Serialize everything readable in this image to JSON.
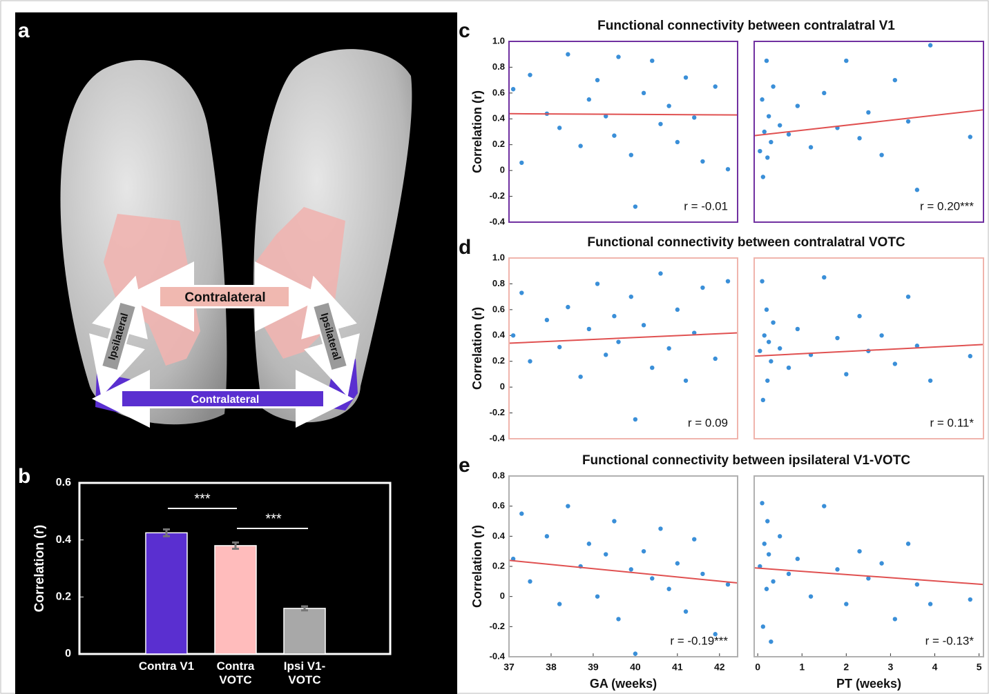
{
  "panel_a": {
    "label": "a",
    "arrows": [
      "Contralateral",
      "Ipsilateral",
      "Ipsilateral",
      "Contralateral"
    ]
  },
  "chart_data": [
    {
      "type": "bar",
      "panel": "b",
      "ylabel": "Correlation (r)",
      "categories": [
        "Contra V1",
        "Contra VOTC",
        "Ipsi V1-VOTC"
      ],
      "values": [
        0.425,
        0.38,
        0.16
      ],
      "errors": [
        0.012,
        0.011,
        0.007
      ],
      "colors": [
        "#5a2fd0",
        "#ffbcbc",
        "#a8a8a8"
      ],
      "ylim": [
        0,
        0.6
      ],
      "yticks": [
        0,
        0.2,
        0.4,
        0.6
      ],
      "annotations": [
        "***",
        "***"
      ]
    },
    {
      "type": "scatter",
      "panel": "c",
      "title": "Functional connectivity between contralatral V1",
      "ylabel": "Correlation (r)",
      "xlim": [
        37,
        42.43
      ],
      "ylim": [
        -0.4,
        1.0
      ],
      "yticks": [
        -0.4,
        -0.2,
        0,
        0.2,
        0.4,
        0.6,
        0.8,
        {
          "value": 1.0,
          "label": "1.0"
        }
      ],
      "x": [
        37.1,
        37.3,
        37.5,
        37.9,
        38.2,
        38.4,
        38.7,
        38.9,
        39.1,
        39.3,
        39.5,
        39.6,
        39.9,
        40.0,
        40.2,
        40.4,
        40.6,
        40.8,
        41.0,
        41.2,
        41.4,
        41.6,
        41.9,
        42.2
      ],
      "y": [
        0.63,
        0.06,
        0.74,
        0.44,
        0.33,
        0.9,
        0.19,
        0.55,
        0.7,
        0.42,
        0.27,
        0.88,
        0.12,
        -0.28,
        0.6,
        0.85,
        0.36,
        0.5,
        0.22,
        0.72,
        0.41,
        0.07,
        0.65,
        0.01
      ],
      "fit": {
        "x": [
          37,
          42.43
        ],
        "y": [
          0.44,
          0.43
        ]
      },
      "annotation": "r = -0.01",
      "color": "#3a8fd8",
      "fit_color": "#e05050",
      "frame_color": "#7030a0"
    },
    {
      "type": "scatter",
      "xlim": [
        -0.08,
        5.1
      ],
      "ylim": [
        -0.4,
        1.0
      ],
      "x": [
        0.05,
        0.1,
        0.12,
        0.15,
        0.2,
        0.22,
        0.25,
        0.3,
        0.35,
        0.5,
        0.7,
        0.9,
        1.2,
        1.5,
        1.8,
        2.0,
        2.3,
        2.5,
        2.8,
        3.1,
        3.4,
        3.6,
        3.9,
        4.8
      ],
      "y": [
        0.15,
        0.55,
        -0.05,
        0.3,
        0.85,
        0.1,
        0.42,
        0.22,
        0.65,
        0.35,
        0.28,
        0.5,
        0.18,
        0.6,
        0.33,
        0.85,
        0.25,
        0.45,
        0.12,
        0.7,
        0.38,
        -0.15,
        0.97,
        0.26
      ],
      "fit": {
        "x": [
          -0.08,
          5.1
        ],
        "y": [
          0.27,
          0.47
        ]
      },
      "annotation": "r = 0.20***",
      "color": "#3a8fd8",
      "fit_color": "#e05050",
      "frame_color": "#7030a0"
    },
    {
      "type": "scatter",
      "panel": "d",
      "title": "Functional connectivity between contralatral VOTC",
      "ylabel": "Correlation (r)",
      "xlim": [
        37,
        42.43
      ],
      "ylim": [
        -0.4,
        1.0
      ],
      "yticks": [
        -0.4,
        -0.2,
        0,
        0.2,
        0.4,
        0.6,
        0.8,
        {
          "value": 1.0,
          "label": "1.0"
        }
      ],
      "x": [
        37.1,
        37.3,
        37.5,
        37.9,
        38.2,
        38.4,
        38.7,
        38.9,
        39.1,
        39.3,
        39.5,
        39.6,
        39.9,
        40.0,
        40.2,
        40.4,
        40.6,
        40.8,
        41.0,
        41.2,
        41.4,
        41.6,
        41.9,
        42.2
      ],
      "y": [
        0.4,
        0.73,
        0.2,
        0.52,
        0.31,
        0.62,
        0.08,
        0.45,
        0.8,
        0.25,
        0.55,
        0.35,
        0.7,
        -0.25,
        0.48,
        0.15,
        0.88,
        0.3,
        0.6,
        0.05,
        0.42,
        0.77,
        0.22,
        0.82
      ],
      "fit": {
        "x": [
          37,
          42.43
        ],
        "y": [
          0.34,
          0.42
        ]
      },
      "annotation": "r = 0.09",
      "color": "#3a8fd8",
      "fit_color": "#e05050",
      "frame_color": "#f0b4ac"
    },
    {
      "type": "scatter",
      "xlim": [
        -0.08,
        5.1
      ],
      "ylim": [
        -0.4,
        1.0
      ],
      "x": [
        0.05,
        0.1,
        0.12,
        0.15,
        0.2,
        0.22,
        0.25,
        0.3,
        0.35,
        0.5,
        0.7,
        0.9,
        1.2,
        1.5,
        1.8,
        2.0,
        2.3,
        2.5,
        2.8,
        3.1,
        3.4,
        3.6,
        3.9,
        4.8
      ],
      "y": [
        0.28,
        0.82,
        -0.1,
        0.4,
        0.6,
        0.05,
        0.35,
        0.2,
        0.5,
        0.3,
        0.15,
        0.45,
        0.25,
        0.85,
        0.38,
        0.1,
        0.55,
        0.28,
        0.4,
        0.18,
        0.7,
        0.32,
        0.05,
        0.24
      ],
      "fit": {
        "x": [
          -0.08,
          5.1
        ],
        "y": [
          0.24,
          0.33
        ]
      },
      "annotation": "r = 0.11*",
      "color": "#3a8fd8",
      "fit_color": "#e05050",
      "frame_color": "#f0b4ac"
    },
    {
      "type": "scatter",
      "panel": "e",
      "title": "Functional connectivity between ipsilateral V1-VOTC",
      "ylabel": "Correlation (r)",
      "xlabel": "GA (weeks)",
      "xlim": [
        37,
        42.43
      ],
      "ylim": [
        -0.4,
        0.8
      ],
      "xticks": [
        37,
        38,
        39,
        40,
        41,
        42
      ],
      "yticks": [
        -0.4,
        -0.2,
        0,
        0.2,
        0.4,
        0.6,
        0.8
      ],
      "x": [
        37.1,
        37.3,
        37.5,
        37.9,
        38.2,
        38.4,
        38.7,
        38.9,
        39.1,
        39.3,
        39.5,
        39.6,
        39.9,
        40.0,
        40.2,
        40.4,
        40.6,
        40.8,
        41.0,
        41.2,
        41.4,
        41.6,
        41.9,
        42.2
      ],
      "y": [
        0.25,
        0.55,
        0.1,
        0.4,
        -0.05,
        0.6,
        0.2,
        0.35,
        0.0,
        0.28,
        0.5,
        -0.15,
        0.18,
        -0.38,
        0.3,
        0.12,
        0.45,
        0.05,
        0.22,
        -0.1,
        0.38,
        0.15,
        -0.25,
        0.08
      ],
      "fit": {
        "x": [
          37,
          42.43
        ],
        "y": [
          0.24,
          0.09
        ]
      },
      "annotation": "r = -0.19***",
      "color": "#3a8fd8",
      "fit_color": "#e05050",
      "frame_color": "#b0b0b0"
    },
    {
      "type": "scatter",
      "xlabel": "PT (weeks)",
      "xlim": [
        -0.08,
        5.1
      ],
      "ylim": [
        -0.4,
        0.8
      ],
      "xticks": [
        0,
        1,
        2,
        3,
        4,
        5
      ],
      "x": [
        0.05,
        0.1,
        0.12,
        0.15,
        0.2,
        0.22,
        0.25,
        0.3,
        0.35,
        0.5,
        0.7,
        0.9,
        1.2,
        1.5,
        1.8,
        2.0,
        2.3,
        2.5,
        2.8,
        3.1,
        3.4,
        3.6,
        3.9,
        4.8
      ],
      "y": [
        0.2,
        0.62,
        -0.2,
        0.35,
        0.05,
        0.5,
        0.28,
        -0.3,
        0.1,
        0.4,
        0.15,
        0.25,
        0.0,
        0.6,
        0.18,
        -0.05,
        0.3,
        0.12,
        0.22,
        -0.15,
        0.35,
        0.08,
        -0.05,
        -0.02
      ],
      "fit": {
        "x": [
          -0.08,
          5.1
        ],
        "y": [
          0.19,
          0.08
        ]
      },
      "annotation": "r = -0.13*",
      "color": "#3a8fd8",
      "fit_color": "#e05050",
      "frame_color": "#b0b0b0"
    }
  ]
}
